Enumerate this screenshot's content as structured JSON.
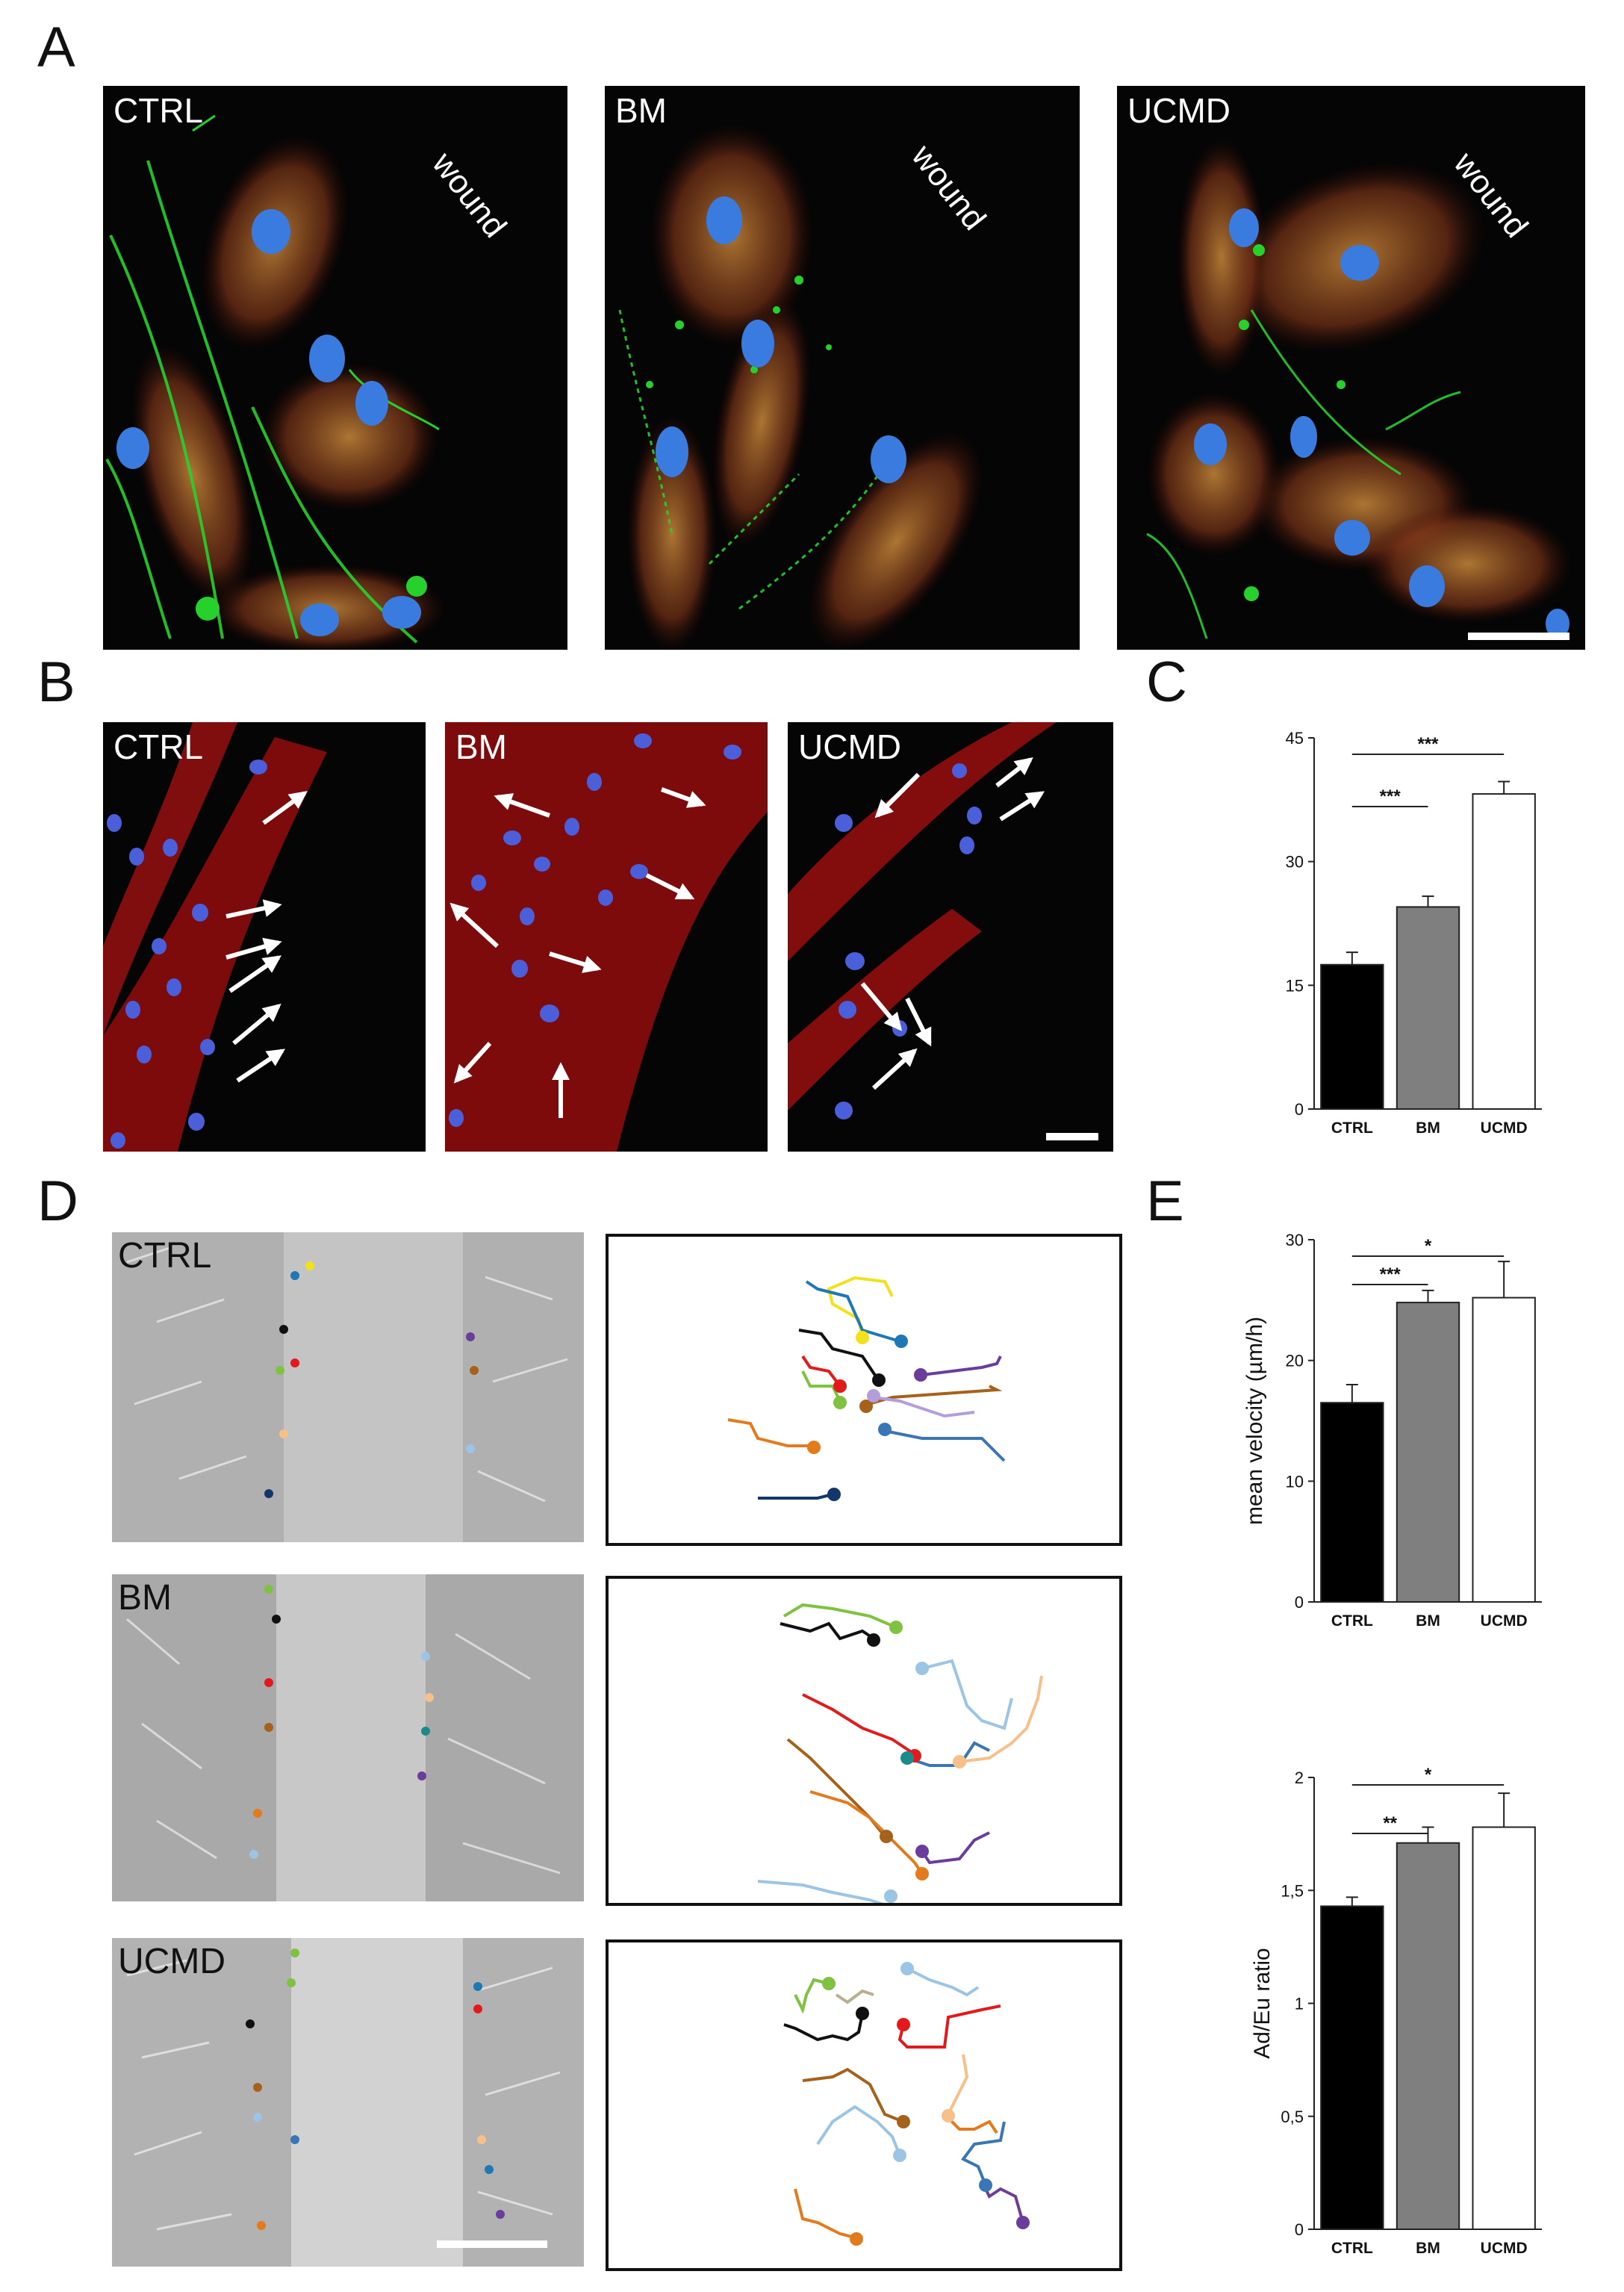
{
  "panels": {
    "A": {
      "label": "A",
      "images": [
        {
          "label": "CTRL",
          "annotation": "wound"
        },
        {
          "label": "BM",
          "annotation": "wound"
        },
        {
          "label": "UCMD",
          "annotation": "wound"
        }
      ]
    },
    "B": {
      "label": "B",
      "images": [
        {
          "label": "CTRL"
        },
        {
          "label": "BM"
        },
        {
          "label": "UCMD"
        }
      ]
    },
    "C": {
      "label": "C"
    },
    "D": {
      "label": "D",
      "images": [
        {
          "label": "CTRL"
        },
        {
          "label": "BM"
        },
        {
          "label": "UCMD"
        }
      ]
    },
    "E": {
      "label": "E"
    }
  },
  "chart_data": [
    {
      "panel": "C",
      "type": "bar",
      "categories": [
        "CTRL",
        "BM",
        "UCMD"
      ],
      "values": [
        17.5,
        24.5,
        38.2
      ],
      "errors": [
        1.5,
        1.3,
        1.5
      ],
      "bar_colors": [
        "#000000",
        "#7f7f7f",
        "#ffffff"
      ],
      "ylabel": "",
      "ylim": [
        0,
        45
      ],
      "yticks": [
        "0",
        "15",
        "30",
        "45"
      ],
      "ytick_values": [
        0,
        15,
        30,
        45
      ],
      "significance": [
        {
          "from": "CTRL",
          "to": "BM",
          "label": "***"
        },
        {
          "from": "CTRL",
          "to": "UCMD",
          "label": "***"
        }
      ]
    },
    {
      "panel": "E-top",
      "type": "bar",
      "categories": [
        "CTRL",
        "BM",
        "UCMD"
      ],
      "values": [
        16.5,
        24.8,
        25.2
      ],
      "errors": [
        1.5,
        1.0,
        3.0
      ],
      "bar_colors": [
        "#000000",
        "#7f7f7f",
        "#ffffff"
      ],
      "ylabel": "mean velocity (µm/h)",
      "ylim": [
        0,
        30
      ],
      "yticks": [
        "0",
        "10",
        "20",
        "30"
      ],
      "ytick_values": [
        0,
        10,
        20,
        30
      ],
      "significance": [
        {
          "from": "CTRL",
          "to": "BM",
          "label": "***"
        },
        {
          "from": "CTRL",
          "to": "UCMD",
          "label": "*"
        }
      ]
    },
    {
      "panel": "E-bottom",
      "type": "bar",
      "categories": [
        "CTRL",
        "BM",
        "UCMD"
      ],
      "values": [
        1.43,
        1.71,
        1.78
      ],
      "errors": [
        0.04,
        0.07,
        0.15
      ],
      "bar_colors": [
        "#000000",
        "#7f7f7f",
        "#ffffff"
      ],
      "ylabel": "Ad/Eu ratio",
      "ylim": [
        0,
        2
      ],
      "yticks": [
        "0",
        "0,5",
        "1",
        "1,5",
        "2"
      ],
      "ytick_values": [
        0,
        0.5,
        1,
        1.5,
        2
      ],
      "significance": [
        {
          "from": "CTRL",
          "to": "BM",
          "label": "**"
        },
        {
          "from": "CTRL",
          "to": "UCMD",
          "label": "*"
        }
      ]
    }
  ],
  "colors": {
    "nucleus": "#3a7be0",
    "actin_red": "#d01818",
    "green_stain": "#22d02a",
    "track_palette": [
      "#f1e21c",
      "#1f77b4",
      "#111111",
      "#e31a1c",
      "#7fc241",
      "#6a3d9a",
      "#a6611a",
      "#e37a1c",
      "#f7c08a",
      "#b39ddb",
      "#14376b",
      "#9cc4e4",
      "#1c8a8a",
      "#b8ae90"
    ]
  }
}
